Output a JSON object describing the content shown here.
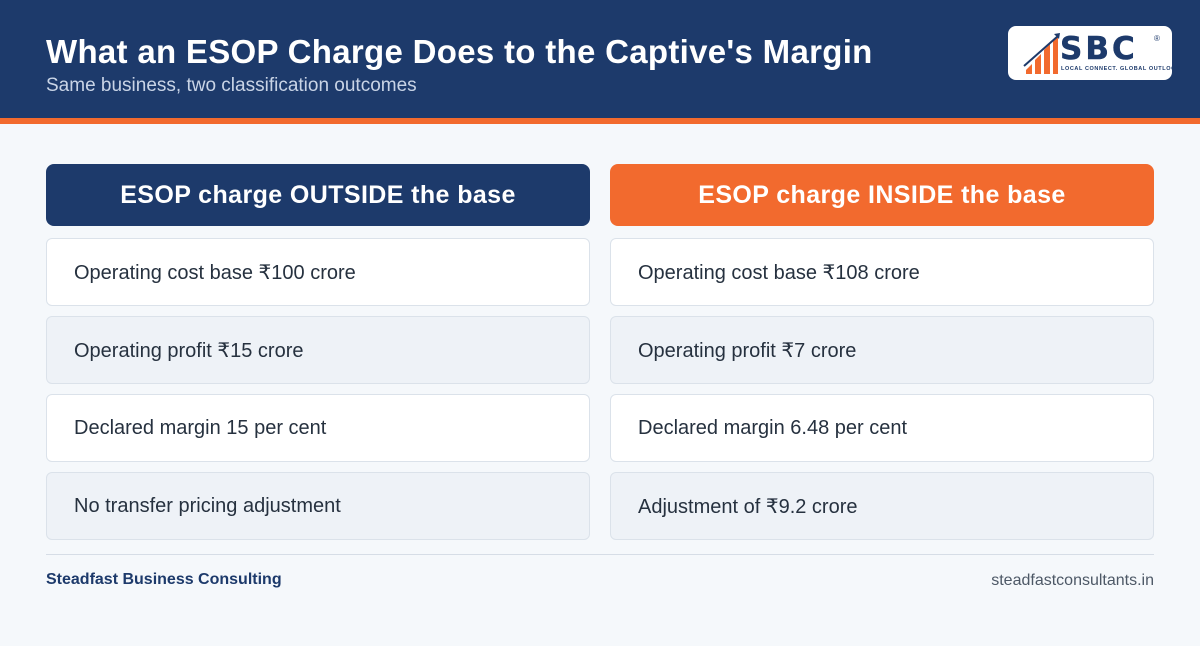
{
  "header": {
    "title": "What an ESOP Charge Does to the Captive's Margin",
    "subtitle": "Same business, two classification outcomes"
  },
  "logo": {
    "text": "SBC",
    "registered": "®",
    "tagline": "LOCAL CONNECT. GLOBAL OUTLOOK",
    "icon": "bar-chart-growth-icon",
    "colors": {
      "navy": "#1d3a6b",
      "orange": "#f26a2e"
    }
  },
  "columns": [
    {
      "heading": "ESOP charge OUTSIDE the base",
      "color": "#1d3a6b",
      "rows": [
        "Operating cost base ₹100 crore",
        "Operating profit ₹15 crore",
        "Declared margin 15 per cent",
        "No transfer pricing adjustment"
      ]
    },
    {
      "heading": "ESOP charge INSIDE the base",
      "color": "#f26a2e",
      "rows": [
        "Operating cost base ₹108 crore",
        "Operating profit ₹7 crore",
        "Declared margin 6.48 per cent",
        "Adjustment of ₹9.2 crore"
      ]
    }
  ],
  "footer": {
    "company": "Steadfast Business Consulting",
    "website": "steadfastconsultants.in"
  }
}
